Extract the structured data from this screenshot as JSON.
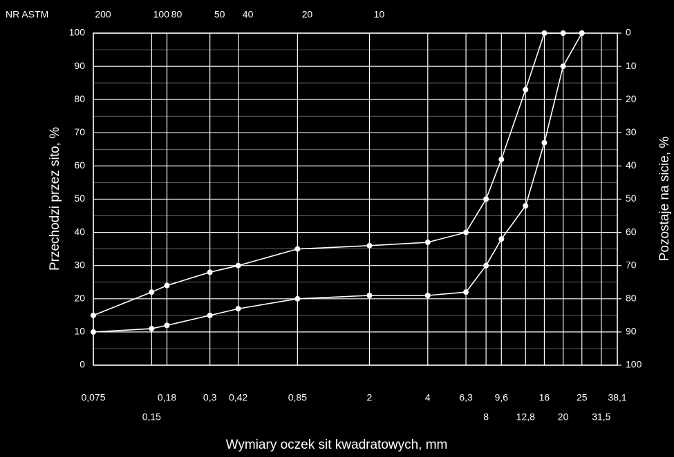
{
  "chart_data": {
    "type": "line",
    "x_label": "Wymiary oczek sit kwadratowych, mm",
    "y_label": "Przechodzi przez sito, %",
    "y2_label": "Pozostaje na sicie, %",
    "top_axis_label": "NR ASTM",
    "xscale": "log",
    "grid": true,
    "color": "#ffffff",
    "x": [
      0.075,
      0.15,
      0.18,
      0.3,
      0.42,
      0.85,
      2,
      4,
      6.3,
      8,
      9.6,
      12.8,
      16,
      20,
      25
    ],
    "series": [
      {
        "values": [
          15,
          22,
          24,
          28,
          30,
          35,
          36,
          37,
          40,
          50,
          62,
          83,
          100,
          100,
          100
        ]
      },
      {
        "values": [
          10,
          11,
          12,
          15,
          17,
          20,
          21,
          21,
          22,
          30,
          38,
          48,
          67,
          90,
          100
        ]
      }
    ],
    "xlim": [
      0.075,
      38.1
    ],
    "xticks": [
      {
        "value": 0.075,
        "label": "0,075"
      },
      {
        "value": 0.15,
        "label": "0,15"
      },
      {
        "value": 0.18,
        "label": "0,18"
      },
      {
        "value": 0.3,
        "label": "0,3"
      },
      {
        "value": 0.42,
        "label": "0,42"
      },
      {
        "value": 0.85,
        "label": "0,85"
      },
      2,
      4,
      {
        "value": 6.3,
        "label": "6,3"
      },
      8,
      {
        "value": 9.6,
        "label": "9,6"
      },
      {
        "value": 12.8,
        "label": "12,8"
      },
      16,
      20,
      25,
      {
        "value": 31.5,
        "label": "31,5"
      },
      {
        "value": 38.1,
        "label": "38,1"
      }
    ],
    "top_ticks": [
      {
        "value": 0.075,
        "label": "200"
      },
      {
        "value": 0.15,
        "label": "100"
      },
      {
        "value": 0.18,
        "label": "80"
      },
      {
        "value": 0.3,
        "label": "50"
      },
      {
        "value": 0.42,
        "label": "40"
      },
      {
        "value": 0.85,
        "label": "20"
      },
      {
        "value": 2,
        "label": "10"
      }
    ],
    "ylim": [
      0,
      100
    ],
    "yticks": [
      0,
      10,
      20,
      30,
      40,
      50,
      60,
      70,
      80,
      90,
      100
    ],
    "y2lim": [
      100,
      0
    ],
    "y2ticks": [
      0,
      10,
      20,
      30,
      40,
      50,
      60,
      70,
      80,
      90,
      100
    ]
  }
}
